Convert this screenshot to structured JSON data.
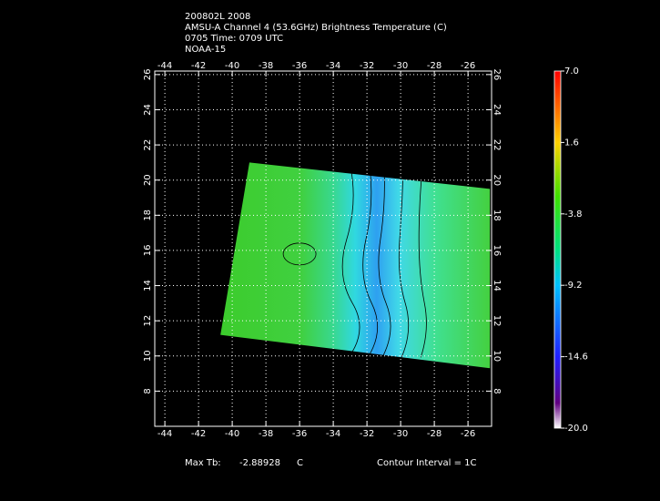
{
  "chart_data": {
    "type": "contour",
    "title": [
      "200802L 2008",
      "AMSU-A Channel 4 (53.6GHz) Brightness Temperature (C)",
      "0705 Time: 0709 UTC",
      "NOAA-15"
    ],
    "xlim": [
      -44.6,
      -24.6
    ],
    "xticks": [
      -44,
      -42,
      -40,
      -38,
      -36,
      -34,
      -32,
      -30,
      -28,
      -26
    ],
    "ylim": [
      6,
      26.2
    ],
    "yticks": [
      8,
      10,
      12,
      14,
      16,
      18,
      20,
      22,
      24,
      26
    ],
    "grid": true,
    "swath": {
      "lon": [
        -38.98,
        -24.7,
        -24.7,
        -40.7
      ],
      "lat": [
        21.0,
        19.5,
        9.3,
        11.2
      ]
    },
    "colorbar": {
      "lim": [
        -20,
        7
      ],
      "ticks": [
        {
          "value": 7,
          "label": "7.0"
        },
        1.6,
        -3.8,
        -9.2,
        -14.6,
        {
          "value": -20,
          "label": "-20.0"
        }
      ]
    },
    "max_label": "Max Tb:",
    "max_value": -2.88928,
    "max_unit": "C",
    "contour_interval": "Contour Interval = 1C"
  }
}
